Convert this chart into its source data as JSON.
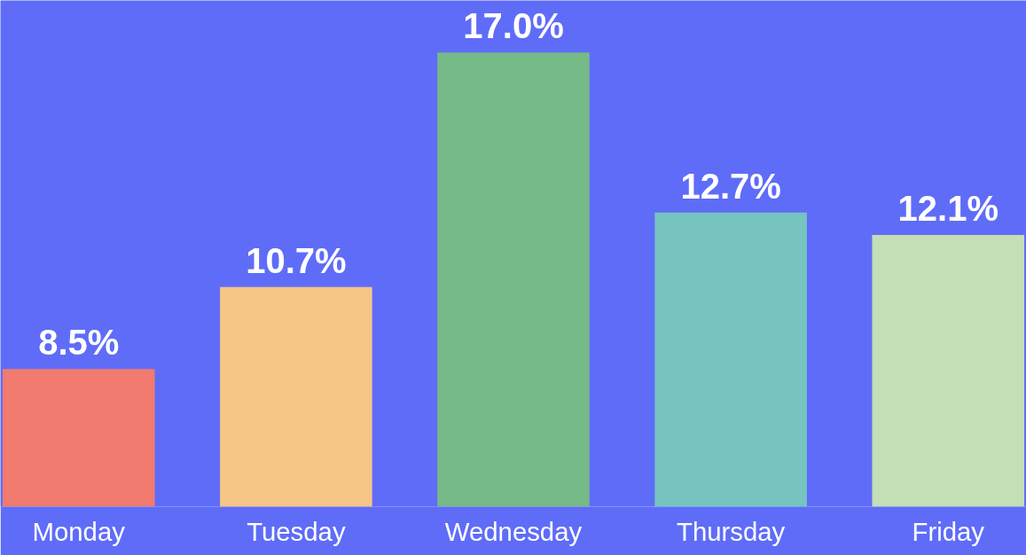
{
  "chart_data": {
    "type": "bar",
    "categories": [
      "Monday",
      "Tuesday",
      "Wednesday",
      "Thursday",
      "Friday"
    ],
    "values": [
      8.5,
      10.7,
      17.0,
      12.7,
      12.1
    ],
    "colors": [
      "#f07b6e",
      "#f5c685",
      "#75b987",
      "#76c3c0",
      "#c3dfb5"
    ],
    "value_labels": [
      "8.5%",
      "10.7%",
      "17.0%",
      "12.7%",
      "12.1%"
    ],
    "ylim": [
      4.8,
      18.4
    ],
    "tick_labels": "x"
  }
}
